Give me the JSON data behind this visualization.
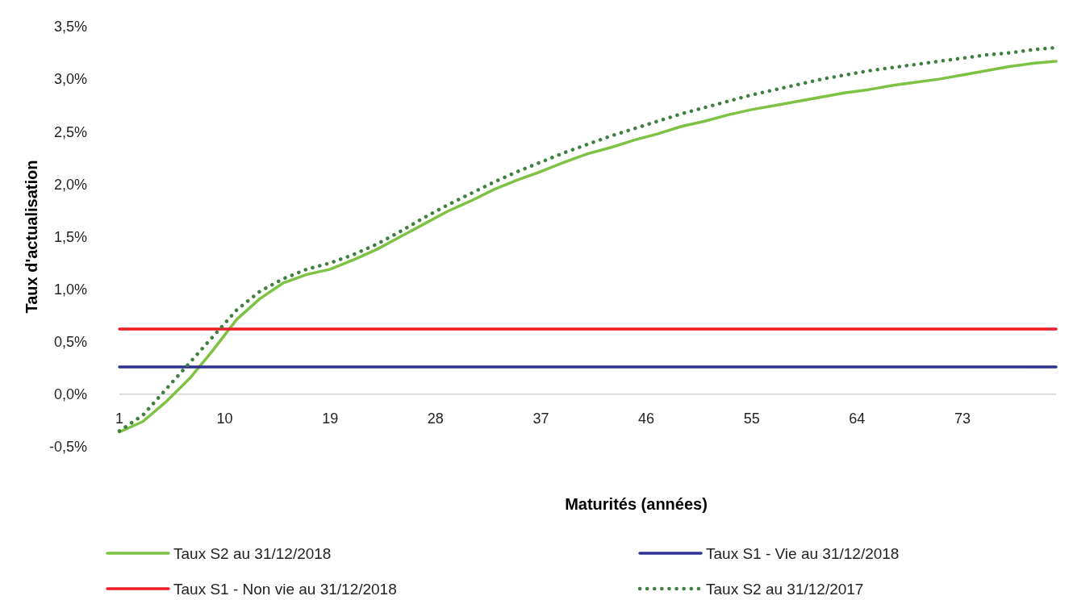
{
  "chart_data": {
    "type": "line",
    "xlabel": "Maturités (années)",
    "ylabel": "Taux d'actualisation",
    "xlim": [
      1,
      81
    ],
    "xticks": [
      1,
      10,
      19,
      28,
      37,
      46,
      55,
      64,
      73
    ],
    "ylim": [
      -0.5,
      3.5
    ],
    "yticks": [
      {
        "value": -0.5,
        "label": "-0,5%"
      },
      {
        "value": 0,
        "label": "0,0%"
      },
      {
        "value": 0.5,
        "label": "0,5%"
      },
      {
        "value": 1,
        "label": "1,0%"
      },
      {
        "value": 1.5,
        "label": "1,5%"
      },
      {
        "value": 2,
        "label": "2,0%"
      },
      {
        "value": 2.5,
        "label": "2,5%"
      },
      {
        "value": 3,
        "label": "3,0%"
      },
      {
        "value": 3.5,
        "label": "3,5%"
      }
    ],
    "grid": false,
    "legend": "bottom",
    "marker": "none",
    "series": [
      {
        "name": "Taux S2 au 31/12/2018",
        "color": "#7dc243",
        "line_style": "solid",
        "x": [
          1,
          3,
          5,
          7,
          9,
          11,
          13,
          15,
          17,
          19,
          21,
          23,
          25,
          27,
          29,
          31,
          33,
          35,
          37,
          39,
          41,
          43,
          45,
          47,
          49,
          51,
          53,
          55,
          57,
          59,
          61,
          63,
          65,
          67,
          69,
          71,
          73,
          75,
          77,
          79,
          81
        ],
        "values": [
          -0.36,
          -0.26,
          -0.07,
          0.15,
          0.42,
          0.71,
          0.91,
          1.06,
          1.14,
          1.19,
          1.28,
          1.38,
          1.5,
          1.62,
          1.74,
          1.84,
          1.95,
          2.04,
          2.12,
          2.21,
          2.29,
          2.35,
          2.42,
          2.48,
          2.55,
          2.6,
          2.66,
          2.71,
          2.75,
          2.79,
          2.83,
          2.87,
          2.9,
          2.94,
          2.97,
          3.0,
          3.04,
          3.08,
          3.12,
          3.15,
          3.17
        ]
      },
      {
        "name": "Taux S1 - Vie au 31/12/2018",
        "color": "#2e3192",
        "line_style": "solid",
        "x": [
          1,
          81
        ],
        "values": [
          0.26,
          0.26
        ]
      },
      {
        "name": "Taux S1 - Non vie au 31/12/2018",
        "color": "#ed1c24",
        "line_style": "solid",
        "x": [
          1,
          81
        ],
        "values": [
          0.62,
          0.62
        ]
      },
      {
        "name": "Taux S2 au 31/12/2017",
        "color": "#3f7f3f",
        "line_style": "dotted",
        "x": [
          1,
          3,
          5,
          7,
          9,
          11,
          13,
          15,
          17,
          19,
          21,
          23,
          25,
          27,
          29,
          31,
          33,
          35,
          37,
          39,
          41,
          43,
          45,
          47,
          49,
          51,
          53,
          55,
          57,
          59,
          61,
          63,
          65,
          67,
          69,
          71,
          73,
          75,
          77,
          79,
          81
        ],
        "values": [
          -0.35,
          -0.2,
          0.05,
          0.3,
          0.55,
          0.8,
          0.98,
          1.1,
          1.19,
          1.25,
          1.33,
          1.43,
          1.55,
          1.68,
          1.8,
          1.91,
          2.02,
          2.12,
          2.21,
          2.3,
          2.38,
          2.46,
          2.53,
          2.6,
          2.67,
          2.73,
          2.79,
          2.85,
          2.9,
          2.95,
          3.0,
          3.04,
          3.08,
          3.11,
          3.14,
          3.17,
          3.2,
          3.23,
          3.25,
          3.28,
          3.3
        ]
      }
    ]
  }
}
